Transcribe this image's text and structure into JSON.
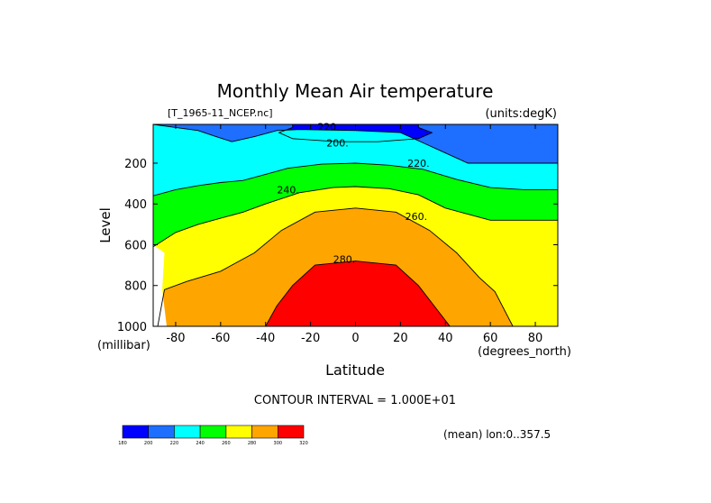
{
  "chart_data": {
    "type": "heatmap",
    "title": "Monthly Mean Air temperature",
    "source_label": "[T_1965-11_NCEP.nc]",
    "units_label": "(units:degK)",
    "xlabel": "Latitude",
    "x_unit_label": "(degrees_north)",
    "ylabel": "Level",
    "y_unit_label": "(millibar)",
    "xlim": [
      -90,
      90
    ],
    "ylim": [
      1000,
      10
    ],
    "x_ticks": [
      -80,
      -60,
      -40,
      -20,
      0,
      20,
      40,
      60,
      80
    ],
    "y_ticks": [
      200,
      400,
      600,
      800,
      1000
    ],
    "contour_interval_text": "CONTOUR INTERVAL = 1.000E+01",
    "mean_text": "(mean) lon:0..357.5",
    "colorbar": {
      "levels": [
        180,
        200,
        220,
        240,
        260,
        280,
        300,
        320
      ],
      "colors": [
        "#0000ff",
        "#1e6eff",
        "#00ffff",
        "#00ff00",
        "#ffff00",
        "#ffa500",
        "#ff0000"
      ]
    },
    "contour_labels": [
      {
        "text": "220.",
        "lat": -12,
        "lev": 20
      },
      {
        "text": "200.",
        "lat": -8,
        "lev": 100
      },
      {
        "text": "220.",
        "lat": 28,
        "lev": 200
      },
      {
        "text": "240.",
        "lat": -30,
        "lev": 330
      },
      {
        "text": "260.",
        "lat": 27,
        "lev": 460
      },
      {
        "text": "280.",
        "lat": -5,
        "lev": 670
      }
    ],
    "level_boundaries": [
      {
        "value": 200,
        "points": [
          [
            -90,
            10
          ],
          [
            -28,
            10
          ],
          [
            -28,
            25
          ],
          [
            -34,
            50
          ],
          [
            -28,
            80
          ],
          [
            -8,
            95
          ],
          [
            10,
            95
          ],
          [
            28,
            80
          ],
          [
            34,
            50
          ],
          [
            28,
            25
          ],
          [
            28,
            10
          ],
          [
            90,
            10
          ]
        ]
      },
      {
        "value": 220,
        "points": [
          [
            -90,
            10
          ],
          [
            -80,
            25
          ],
          [
            -70,
            40
          ],
          [
            -62,
            70
          ],
          [
            -55,
            95
          ],
          [
            -45,
            70
          ],
          [
            -35,
            40
          ],
          [
            -25,
            35
          ],
          [
            0,
            40
          ],
          [
            20,
            50
          ],
          [
            30,
            100
          ],
          [
            40,
            150
          ],
          [
            50,
            200
          ],
          [
            60,
            200
          ],
          [
            70,
            200
          ],
          [
            80,
            200
          ],
          [
            90,
            200
          ]
        ]
      },
      {
        "value": 240,
        "points": [
          [
            -90,
            360
          ],
          [
            -80,
            330
          ],
          [
            -70,
            310
          ],
          [
            -60,
            295
          ],
          [
            -50,
            285
          ],
          [
            -40,
            255
          ],
          [
            -30,
            225
          ],
          [
            -15,
            205
          ],
          [
            0,
            200
          ],
          [
            15,
            210
          ],
          [
            30,
            230
          ],
          [
            45,
            280
          ],
          [
            60,
            320
          ],
          [
            75,
            330
          ],
          [
            90,
            330
          ]
        ]
      },
      {
        "value": 260,
        "points": [
          [
            -90,
            610
          ],
          [
            -80,
            540
          ],
          [
            -70,
            500
          ],
          [
            -60,
            470
          ],
          [
            -50,
            440
          ],
          [
            -40,
            400
          ],
          [
            -25,
            345
          ],
          [
            -10,
            320
          ],
          [
            0,
            315
          ],
          [
            15,
            325
          ],
          [
            28,
            355
          ],
          [
            40,
            420
          ],
          [
            50,
            450
          ],
          [
            60,
            480
          ],
          [
            75,
            480
          ],
          [
            90,
            480
          ]
        ]
      },
      {
        "value": 280,
        "points": [
          [
            -88,
            1000
          ],
          [
            -85,
            820
          ],
          [
            -75,
            780
          ],
          [
            -60,
            730
          ],
          [
            -45,
            640
          ],
          [
            -33,
            530
          ],
          [
            -18,
            440
          ],
          [
            0,
            420
          ],
          [
            18,
            440
          ],
          [
            33,
            530
          ],
          [
            45,
            640
          ],
          [
            55,
            760
          ],
          [
            62,
            830
          ],
          [
            70,
            1000
          ]
        ]
      },
      {
        "value": 300,
        "points": [
          [
            -40,
            1000
          ],
          [
            -35,
            900
          ],
          [
            -28,
            800
          ],
          [
            -18,
            700
          ],
          [
            0,
            680
          ],
          [
            18,
            700
          ],
          [
            28,
            800
          ],
          [
            35,
            900
          ],
          [
            42,
            1000
          ]
        ]
      }
    ]
  }
}
